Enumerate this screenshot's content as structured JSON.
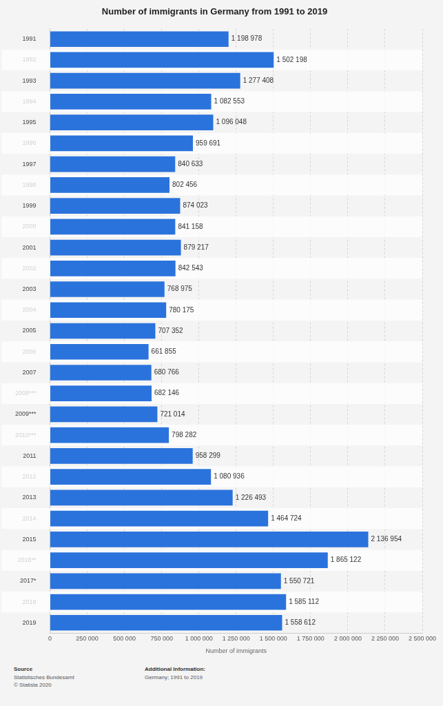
{
  "chart_data": {
    "type": "bar",
    "orientation": "horizontal",
    "title": "Number of immigrants in Germany from 1991 to 2019",
    "x_label": "Number of immigrants",
    "categories": [
      "1991",
      "1992",
      "1993",
      "1994",
      "1995",
      "1996",
      "1997",
      "1998",
      "1999",
      "2000",
      "2001",
      "2002",
      "2003",
      "2004",
      "2005",
      "2006",
      "2007",
      "2008***",
      "2009***",
      "2010***",
      "2011",
      "2012",
      "2013",
      "2014",
      "2015",
      "2016**",
      "2017*",
      "2018",
      "2019"
    ],
    "values": [
      1198978,
      1502198,
      1277408,
      1082553,
      1096048,
      959691,
      840633,
      802456,
      874023,
      841158,
      879217,
      842543,
      768975,
      780175,
      707352,
      661855,
      680766,
      682146,
      721014,
      798282,
      958299,
      1080936,
      1226493,
      1464724,
      2136954,
      1865122,
      1550721,
      1585112,
      1558612
    ],
    "value_labels": [
      "1 198 978",
      "1 502 198",
      "1 277 408",
      "1 082 553",
      "1 096 048",
      "959 691",
      "840 633",
      "802 456",
      "874 023",
      "841 158",
      "879 217",
      "842 543",
      "768 975",
      "780 175",
      "707 352",
      "661 855",
      "680 766",
      "682 146",
      "721 014",
      "798 282",
      "958 299",
      "1 080 936",
      "1 226 493",
      "1 464 724",
      "2 136 954",
      "1 865 122",
      "1 550 721",
      "1 585 112",
      "1 558 612"
    ],
    "data_labels": true,
    "color": "#2b73dc",
    "xlim": [
      0,
      2500000
    ],
    "xticks": [
      0,
      {
        "value": 250000,
        "label": "250 000"
      },
      {
        "value": 500000,
        "label": "500 000"
      },
      {
        "value": 750000,
        "label": "750 000"
      },
      {
        "value": 1000000,
        "label": "1 000 000"
      },
      {
        "value": 1250000,
        "label": "1 250 000"
      },
      {
        "value": 1500000,
        "label": "1 500 000"
      },
      {
        "value": 1750000,
        "label": "1 750 000"
      },
      {
        "value": 2000000,
        "label": "2 000 000"
      },
      {
        "value": 2250000,
        "label": "2 250 000"
      },
      {
        "value": 2500000,
        "label": "2 500 000"
      }
    ],
    "grid": true
  },
  "footer": {
    "source_heading": "Source",
    "source_lines": [
      "Statistisches Bundesamt",
      "© Statista 2020"
    ],
    "info_heading": "Additional Information:",
    "info_lines": [
      "Germany; 1991 to 2019"
    ]
  }
}
